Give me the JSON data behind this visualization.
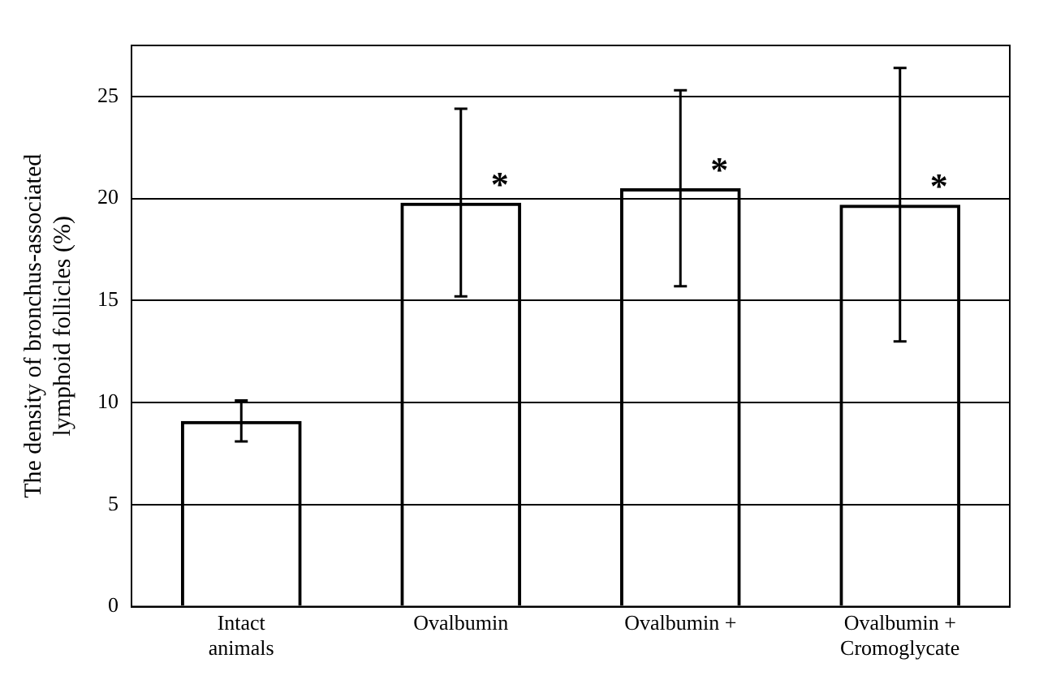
{
  "chart_data": {
    "type": "bar",
    "ylabel": "The density of bronchus-associated lymphoid follicles (%)",
    "categories": [
      "Intact animals",
      "Ovalbumin",
      "Ovalbumin +",
      "Ovalbumin + Cromoglycate"
    ],
    "values": [
      9.1,
      19.8,
      20.5,
      19.7
    ],
    "errors": [
      [
        8.1,
        10.1
      ],
      [
        15.2,
        24.4
      ],
      [
        15.7,
        25.3
      ],
      [
        13.0,
        26.4
      ]
    ],
    "color": "#000000",
    "ylim": [
      0,
      27.5
    ],
    "yticks": [
      0,
      5,
      10,
      15,
      20,
      25
    ],
    "grid": "y",
    "legend": false,
    "annotations": [
      {
        "text": "*",
        "x": "Ovalbumin",
        "y": 19.8
      },
      {
        "text": "*",
        "x": "Ovalbumin +",
        "y": 20.5
      },
      {
        "text": "*",
        "x": "Ovalbumin + Cromoglycate",
        "y": 19.7
      }
    ]
  }
}
